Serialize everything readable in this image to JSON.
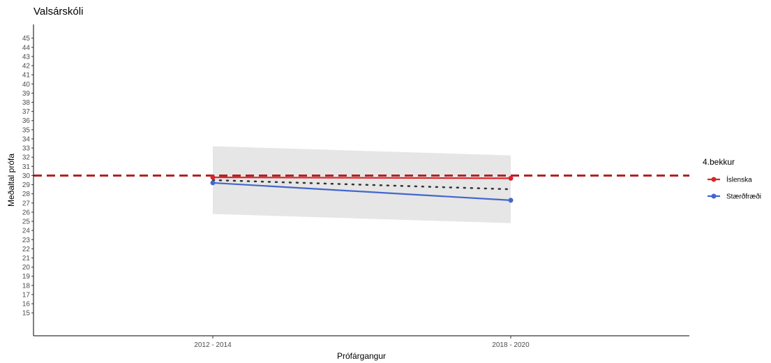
{
  "chart_data": {
    "type": "line",
    "title": "Valsárskóli",
    "xlabel": "Prófárgangur",
    "ylabel": "Meðaltal prófa",
    "categories": [
      "2012 - 2014",
      "2018 - 2020"
    ],
    "y_ticks": [
      15,
      16,
      17,
      18,
      19,
      20,
      21,
      22,
      23,
      24,
      25,
      26,
      27,
      28,
      29,
      30,
      31,
      32,
      33,
      34,
      35,
      36,
      37,
      38,
      39,
      40,
      41,
      42,
      43,
      44,
      45
    ],
    "ylim": [
      12.5,
      46.5
    ],
    "grid": false,
    "legend": {
      "title": "4.bekkur",
      "placement": "right",
      "entries": [
        {
          "label": "Íslenska",
          "color": "#d7262b"
        },
        {
          "label": "Stærðfræði",
          "color": "#4466cc"
        }
      ]
    },
    "series": [
      {
        "name": "Íslenska",
        "color": "#d7262b",
        "values": [
          29.8,
          29.7
        ]
      },
      {
        "name": "Stærðfræði",
        "color": "#4466cc",
        "values": [
          29.2,
          27.3
        ]
      }
    ],
    "mean_line": {
      "values": [
        29.5,
        28.5
      ],
      "style": "dotted",
      "color": "#333333"
    },
    "confidence_band": {
      "lower": [
        25.8,
        24.8
      ],
      "upper": [
        33.2,
        32.2
      ],
      "color": "#e6e6e6"
    },
    "reference_line": {
      "y": 30,
      "style": "dashed",
      "color": "#b22222"
    }
  }
}
